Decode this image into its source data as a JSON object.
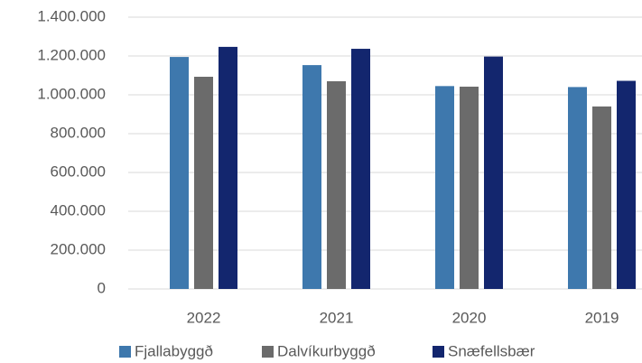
{
  "chart_data": {
    "type": "bar",
    "categories": [
      "2022",
      "2021",
      "2020",
      "2019"
    ],
    "series": [
      {
        "name": "Fjallabyggð",
        "color": "#3e78ad",
        "values": [
          1195000,
          1153000,
          1045000,
          1040000
        ]
      },
      {
        "name": "Dalvíkurbyggð",
        "color": "#6b6b6b",
        "values": [
          1093000,
          1070000,
          1042000,
          940000
        ]
      },
      {
        "name": "Snæfellsbær",
        "color": "#13266e",
        "values": [
          1247000,
          1237000,
          1197000,
          1072000
        ]
      }
    ],
    "ylim": [
      0,
      1400000
    ],
    "yticks": [
      0,
      {
        "value": 200000,
        "label": "200.000"
      },
      {
        "value": 400000,
        "label": "400.000"
      },
      {
        "value": 600000,
        "label": "600.000"
      },
      {
        "value": 800000,
        "label": "800.000"
      },
      {
        "value": 1000000,
        "label": "1.000.000"
      },
      {
        "value": 1200000,
        "label": "1.200.000"
      },
      {
        "value": 1400000,
        "label": "1.400.000"
      }
    ],
    "grid": true,
    "legend": "bottom"
  }
}
